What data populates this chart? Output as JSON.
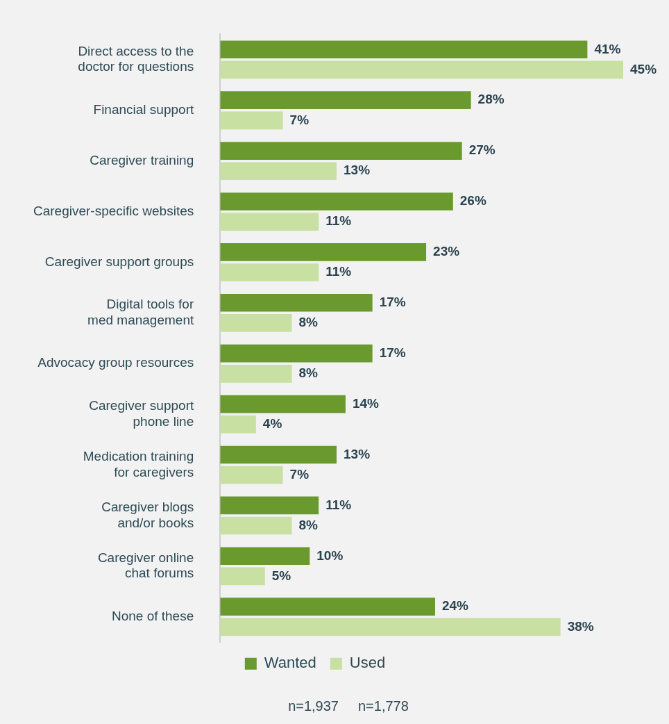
{
  "chart_data": {
    "type": "bar",
    "orientation": "horizontal",
    "categories": [
      "Direct access to the\ndoctor for questions",
      "Financial support",
      "Caregiver training",
      "Caregiver-specific websites",
      "Caregiver support groups",
      "Digital tools for\nmed management",
      "Advocacy group resources",
      "Caregiver support\nphone line",
      "Medication training\nfor caregivers",
      "Caregiver blogs\nand/or books",
      "Caregiver online\nchat forums",
      "None of these"
    ],
    "series": [
      {
        "name": "Wanted",
        "color": "#6a9a2e",
        "values": [
          41,
          28,
          27,
          26,
          23,
          17,
          17,
          14,
          13,
          11,
          10,
          24
        ],
        "value_labels": [
          "41%",
          "28%",
          "27%",
          "26%",
          "23%",
          "17%",
          "17%",
          "14%",
          "13%",
          "11%",
          "10%",
          "24%"
        ]
      },
      {
        "name": "Used",
        "color": "#c8e0a2",
        "values": [
          45,
          7,
          13,
          11,
          11,
          8,
          8,
          4,
          7,
          8,
          5,
          38
        ],
        "value_labels": [
          "45%",
          "7%",
          "13%",
          "11%",
          "11%",
          "8%",
          "8%",
          "4%",
          "7%",
          "8%",
          "5%",
          "38%"
        ]
      }
    ],
    "tick_labels": "y",
    "grid": false,
    "legend": "bottom",
    "annotations": [
      "n=1,937",
      "n=1,778"
    ]
  }
}
